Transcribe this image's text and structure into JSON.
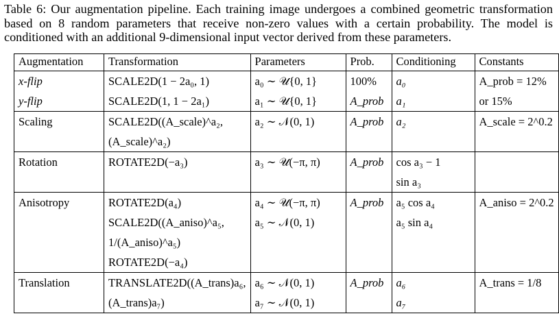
{
  "caption": "Table 6: Our augmentation pipeline. Each training image undergoes a combined geometric transformation based on 8 random parameters that receive non-zero values with a certain probability. The model is conditioned with an additional 9-dimensional input vector derived from these parameters.",
  "headers": [
    "Augmentation",
    "Transformation",
    "Parameters",
    "Prob.",
    "Conditioning",
    "Constants"
  ],
  "rows": {
    "xflip": {
      "aug": "x-flip",
      "trans": "SCALE2D(1 − 2a₀, 1)",
      "param": "a₀ ∼ 𝒰{0, 1}",
      "prob": "100%",
      "cond": "a₀",
      "const1": "A_prob = 12%"
    },
    "yflip": {
      "aug": "y-flip",
      "trans": "SCALE2D(1, 1 − 2a₁)",
      "param": "a₁ ∼ 𝒰{0, 1}",
      "prob": "A_prob",
      "cond": "a₁",
      "const2": "or 15%"
    },
    "scaling": {
      "aug": "Scaling",
      "trans1": "SCALE2D((A_scale)^a₂,",
      "trans2": "(A_scale)^a₂)",
      "param": "a₂ ∼ 𝒩(0, 1)",
      "prob": "A_prob",
      "cond": "a₂",
      "const": "A_scale = 2^0.2"
    },
    "rotation": {
      "aug": "Rotation",
      "trans": "ROTATE2D(−a₃)",
      "param": "a₃ ∼ 𝒰(−π, π)",
      "prob": "A_prob",
      "cond1": "cos a₃ − 1",
      "cond2": "sin a₃"
    },
    "anisotropy": {
      "aug": "Anisotropy",
      "trans1": "ROTATE2D(a₄)",
      "trans2": "SCALE2D((A_aniso)^a₅,",
      "trans3": "1/(A_aniso)^a₅)",
      "trans4": "ROTATE2D(−a₄)",
      "param1": "a₄ ∼ 𝒰(−π, π)",
      "param2": "a₅ ∼ 𝒩(0, 1)",
      "prob": "A_prob",
      "cond1": "a₅ cos a₄",
      "cond2": "a₅ sin a₄",
      "const": "A_aniso = 2^0.2"
    },
    "translation": {
      "aug": "Translation",
      "trans1": "TRANSLATE2D((A_trans)a₆,",
      "trans2": "(A_trans)a₇)",
      "param1": "a₆ ∼ 𝒩(0, 1)",
      "param2": "a₇ ∼ 𝒩(0, 1)",
      "prob": "A_prob",
      "cond1": "a₆",
      "cond2": "a₇",
      "const": "A_trans = 1/8"
    }
  }
}
